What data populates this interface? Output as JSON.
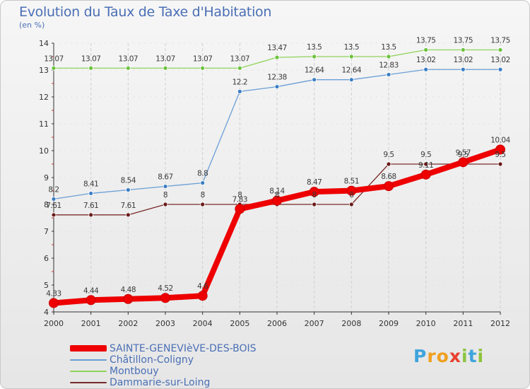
{
  "header": {
    "title": "Evolution du Taux de Taxe d'Habitation",
    "subtitle": "(en %)"
  },
  "logo": {
    "text": "Proxiti",
    "letters": [
      {
        "ch": "P",
        "color": "#3fa4dc"
      },
      {
        "ch": "r",
        "color": "#f0a020"
      },
      {
        "ch": "o",
        "color": "#f0a020"
      },
      {
        "ch": "x",
        "color": "#e84030"
      },
      {
        "ch": "i",
        "color": "#8cc43c"
      },
      {
        "ch": "t",
        "color": "#3fa4dc"
      },
      {
        "ch": "i",
        "color": "#8cc43c"
      }
    ]
  },
  "chart_data": {
    "type": "line",
    "title": "Evolution du Taux de Taxe d'Habitation",
    "ylabel": "(en %)",
    "xlabel": "",
    "x": [
      "2000",
      "2001",
      "2002",
      "2003",
      "2004",
      "2005",
      "2006",
      "2007",
      "2008",
      "2009",
      "2010",
      "2011",
      "2012"
    ],
    "ylim": [
      4,
      14
    ],
    "yticks": [
      "4",
      "5",
      "6",
      "7",
      "8",
      "9",
      "10",
      "11",
      "12",
      "13",
      "14"
    ],
    "grid": "vertical",
    "legend_position": "bottom-left",
    "series": [
      {
        "name": "Montbouy",
        "color": "#8fd35a",
        "marker": "#6cc23c",
        "values": [
          13.07,
          13.07,
          13.07,
          13.07,
          13.07,
          13.07,
          13.47,
          13.5,
          13.5,
          13.5,
          13.75,
          13.75,
          13.75
        ],
        "labels": [
          "13.07",
          "13.07",
          "13.07",
          "13.07",
          "13.07",
          "13.07",
          "13.47",
          "13.5",
          "13.5",
          "13.5",
          "13.75",
          "13.75",
          "13.75"
        ]
      },
      {
        "name": "Châtillon-Coligny",
        "color": "#6a9ed6",
        "marker": "#3a7ec4",
        "values": [
          8.2,
          8.41,
          8.54,
          8.67,
          8.8,
          12.2,
          12.38,
          12.64,
          12.64,
          12.83,
          13.02,
          13.02,
          13.02
        ],
        "labels": [
          "8.2",
          "8.41",
          "8.54",
          "8.67",
          "8.8",
          "12.2",
          "12.38",
          "12.64",
          "12.64",
          "12.83",
          "13.02",
          "13.02",
          "13.02"
        ]
      },
      {
        "name": "Dammarie-sur-Loing",
        "color": "#7a2a2a",
        "marker": "#6a1a1a",
        "values": [
          7.61,
          7.61,
          7.61,
          8,
          8,
          8,
          8,
          8,
          8,
          9.5,
          9.5,
          9.5,
          9.5
        ],
        "labels": [
          "7.61",
          "7.61",
          "7.61",
          "8",
          "8",
          "8",
          "8",
          "8",
          "8",
          "9.5",
          "9.5",
          "9.5",
          "9.5"
        ]
      },
      {
        "name": "SAINTE-GENEVIèVE-DES-BOIS",
        "color": "#ee0000",
        "marker": "#ee0000",
        "values": [
          4.33,
          4.44,
          4.48,
          4.52,
          4.6,
          7.83,
          8.14,
          8.47,
          8.51,
          8.68,
          9.11,
          9.57,
          10.04
        ],
        "labels": [
          "4.33",
          "4.44",
          "4.48",
          "4.52",
          "4.6",
          "7.83",
          "8.14",
          "8.47",
          "8.51",
          "8.68",
          "9.11",
          "9.57",
          "10.04"
        ]
      }
    ]
  },
  "legend": [
    {
      "name": "SAINTE-GENEVIèVE-DES-BOIS",
      "color": "#ee0000",
      "thick": true
    },
    {
      "name": "Châtillon-Coligny",
      "color": "#6a9ed6",
      "thick": false
    },
    {
      "name": "Montbouy",
      "color": "#8fd35a",
      "thick": false
    },
    {
      "name": "Dammarie-sur-Loing",
      "color": "#7a2a2a",
      "thick": false
    }
  ]
}
